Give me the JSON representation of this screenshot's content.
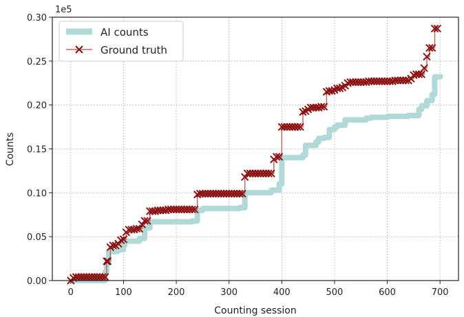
{
  "chart_data": {
    "type": "line",
    "title": "",
    "xlabel": "Counting session",
    "ylabel": "Counts",
    "offset_label": "1e5",
    "xlim": [
      -35,
      735
    ],
    "ylim": [
      0,
      0.3
    ],
    "xticks": [
      0,
      100,
      200,
      300,
      400,
      500,
      600,
      700
    ],
    "yticks": [
      0.0,
      0.05,
      0.1,
      0.15,
      0.2,
      0.25,
      0.3
    ],
    "ytick_labels": [
      "0.00",
      "0.05",
      "0.10",
      "0.15",
      "0.20",
      "0.25",
      "0.30"
    ],
    "grid": true,
    "legend_position": "top-left",
    "series": [
      {
        "name": "AI counts",
        "style": "thick-line",
        "color": "#b0d9d8",
        "x": [
          0,
          60,
          65,
          68,
          72,
          85,
          88,
          100,
          102,
          130,
          140,
          150,
          200,
          230,
          240,
          250,
          320,
          330,
          380,
          395,
          400,
          440,
          445,
          465,
          470,
          480,
          490,
          500,
          505,
          520,
          560,
          570,
          600,
          640,
          660,
          665,
          675,
          685,
          690,
          700
        ],
        "y": [
          0.0,
          0.0,
          0.01,
          0.02,
          0.033,
          0.033,
          0.035,
          0.04,
          0.045,
          0.048,
          0.06,
          0.067,
          0.067,
          0.068,
          0.08,
          0.082,
          0.083,
          0.1,
          0.103,
          0.11,
          0.14,
          0.143,
          0.154,
          0.158,
          0.162,
          0.163,
          0.172,
          0.175,
          0.177,
          0.183,
          0.185,
          0.186,
          0.187,
          0.188,
          0.195,
          0.199,
          0.205,
          0.212,
          0.232,
          0.235
        ]
      },
      {
        "name": "Ground truth",
        "style": "line-with-x-markers",
        "color": "#8b1010",
        "x": [
          0,
          5,
          10,
          15,
          20,
          25,
          30,
          35,
          40,
          45,
          50,
          55,
          60,
          65,
          68,
          70,
          75,
          80,
          85,
          90,
          95,
          100,
          105,
          110,
          115,
          120,
          125,
          130,
          135,
          140,
          145,
          150,
          155,
          160,
          165,
          170,
          175,
          180,
          185,
          190,
          195,
          200,
          205,
          210,
          215,
          220,
          225,
          230,
          235,
          240,
          245,
          250,
          255,
          260,
          265,
          270,
          275,
          280,
          285,
          290,
          295,
          300,
          305,
          310,
          315,
          320,
          325,
          330,
          335,
          340,
          345,
          350,
          355,
          360,
          365,
          370,
          375,
          380,
          385,
          390,
          395,
          400,
          405,
          410,
          415,
          420,
          425,
          430,
          435,
          440,
          445,
          450,
          455,
          460,
          465,
          470,
          475,
          480,
          485,
          490,
          495,
          500,
          505,
          510,
          515,
          520,
          525,
          530,
          535,
          540,
          545,
          550,
          555,
          560,
          565,
          570,
          575,
          580,
          585,
          590,
          595,
          600,
          605,
          610,
          615,
          620,
          625,
          630,
          635,
          640,
          645,
          650,
          655,
          660,
          665,
          670,
          675,
          680,
          685,
          690,
          695
        ],
        "y": [
          0.0,
          0.003,
          0.004,
          0.004,
          0.004,
          0.004,
          0.004,
          0.004,
          0.004,
          0.004,
          0.004,
          0.004,
          0.004,
          0.004,
          0.022,
          0.022,
          0.038,
          0.04,
          0.04,
          0.042,
          0.046,
          0.047,
          0.055,
          0.058,
          0.058,
          0.058,
          0.059,
          0.059,
          0.064,
          0.068,
          0.068,
          0.079,
          0.079,
          0.079,
          0.08,
          0.08,
          0.08,
          0.08,
          0.081,
          0.081,
          0.081,
          0.081,
          0.081,
          0.081,
          0.081,
          0.081,
          0.081,
          0.081,
          0.081,
          0.098,
          0.099,
          0.099,
          0.099,
          0.099,
          0.099,
          0.099,
          0.099,
          0.099,
          0.099,
          0.099,
          0.099,
          0.099,
          0.099,
          0.099,
          0.099,
          0.099,
          0.099,
          0.118,
          0.122,
          0.122,
          0.122,
          0.122,
          0.122,
          0.122,
          0.122,
          0.122,
          0.122,
          0.122,
          0.138,
          0.141,
          0.141,
          0.175,
          0.175,
          0.175,
          0.175,
          0.175,
          0.175,
          0.175,
          0.175,
          0.192,
          0.193,
          0.195,
          0.197,
          0.197,
          0.197,
          0.197,
          0.198,
          0.198,
          0.215,
          0.216,
          0.216,
          0.217,
          0.219,
          0.219,
          0.22,
          0.222,
          0.225,
          0.226,
          0.226,
          0.226,
          0.226,
          0.226,
          0.226,
          0.226,
          0.227,
          0.227,
          0.227,
          0.227,
          0.227,
          0.227,
          0.227,
          0.227,
          0.227,
          0.227,
          0.228,
          0.228,
          0.228,
          0.228,
          0.228,
          0.228,
          0.23,
          0.234,
          0.235,
          0.235,
          0.235,
          0.242,
          0.255,
          0.265,
          0.265,
          0.287,
          0.287
        ]
      }
    ]
  }
}
